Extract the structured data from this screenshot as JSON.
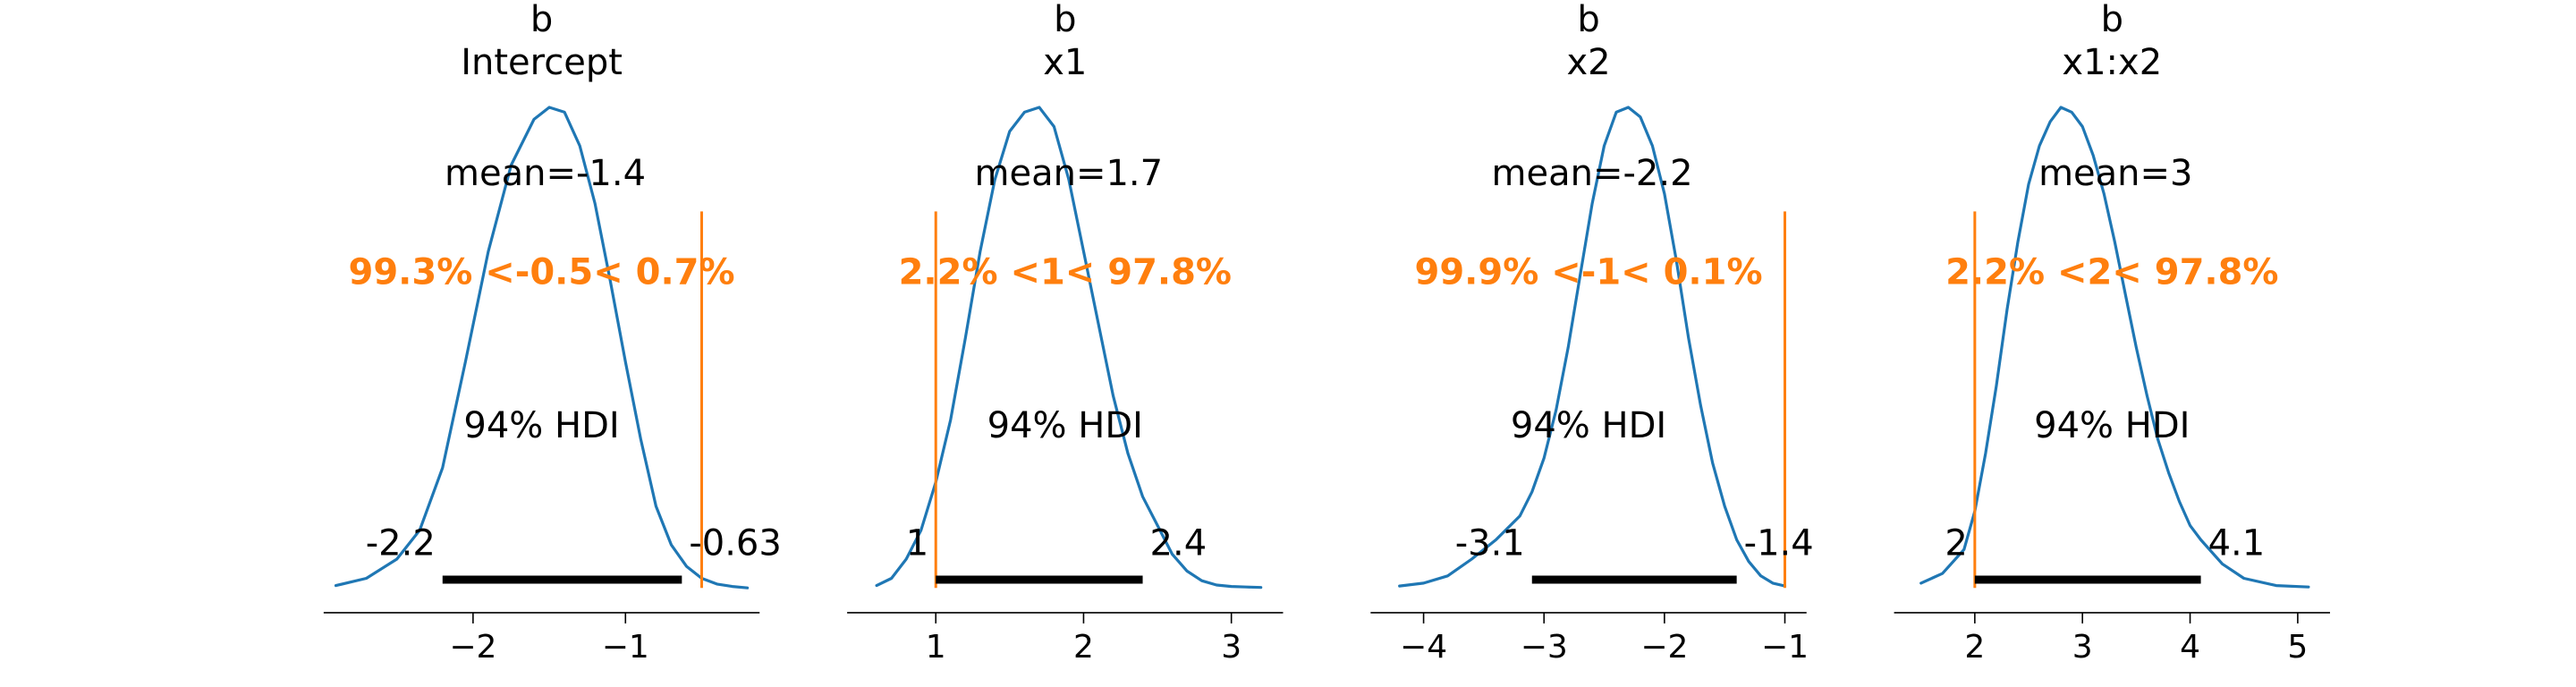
{
  "chart_data": [
    {
      "type": "line",
      "title_lines": [
        "b",
        "Intercept"
      ],
      "x_ticks": [
        -2,
        -1
      ],
      "x_tick_labels": [
        "−2",
        "−1"
      ],
      "xlim": [
        -2.98,
        -0.12
      ],
      "density": {
        "x": [
          -2.9,
          -2.7,
          -2.5,
          -2.35,
          -2.2,
          -2.05,
          -1.9,
          -1.75,
          -1.6,
          -1.5,
          -1.4,
          -1.3,
          -1.2,
          -1.1,
          -1.0,
          -0.9,
          -0.8,
          -0.7,
          -0.6,
          -0.5,
          -0.4,
          -0.3,
          -0.2
        ],
        "y": [
          0.005,
          0.02,
          0.06,
          0.12,
          0.25,
          0.47,
          0.7,
          0.88,
          0.975,
          1.0,
          0.99,
          0.92,
          0.8,
          0.64,
          0.47,
          0.31,
          0.17,
          0.09,
          0.045,
          0.02,
          0.008,
          0.003,
          0.0
        ]
      },
      "mean_label": "mean=-1.4",
      "ref_label": "99.3% <-0.5< 0.7%",
      "ref_value": -0.5,
      "hdi_label": "94% HDI",
      "hdi": [
        -2.2,
        -0.63
      ],
      "hdi_low_label": "-2.2",
      "hdi_high_label": "-0.63"
    },
    {
      "type": "line",
      "title_lines": [
        "b",
        "x1"
      ],
      "x_ticks": [
        1,
        2,
        3
      ],
      "x_tick_labels": [
        "1",
        "2",
        "3"
      ],
      "xlim": [
        0.4,
        3.35
      ],
      "density": {
        "x": [
          0.6,
          0.7,
          0.8,
          0.9,
          1.0,
          1.1,
          1.2,
          1.3,
          1.4,
          1.5,
          1.6,
          1.7,
          1.8,
          1.9,
          2.0,
          2.1,
          2.2,
          2.3,
          2.4,
          2.5,
          2.6,
          2.7,
          2.8,
          2.9,
          3.0,
          3.1,
          3.2
        ],
        "y": [
          0.005,
          0.02,
          0.06,
          0.12,
          0.22,
          0.35,
          0.52,
          0.7,
          0.85,
          0.95,
          0.99,
          1.0,
          0.96,
          0.85,
          0.7,
          0.55,
          0.4,
          0.28,
          0.19,
          0.13,
          0.07,
          0.035,
          0.015,
          0.006,
          0.003,
          0.002,
          0.001
        ]
      },
      "mean_label": "mean=1.7",
      "ref_label": "2.2% <1< 97.8%",
      "ref_value": 1,
      "hdi_label": "94% HDI",
      "hdi": [
        1.0,
        2.4
      ],
      "hdi_low_label": "1",
      "hdi_high_label": "2.4"
    },
    {
      "type": "line",
      "title_lines": [
        "b",
        "x2"
      ],
      "x_ticks": [
        -4,
        -3,
        -2,
        -1
      ],
      "x_tick_labels": [
        "−4",
        "−3",
        "−2",
        "−1"
      ],
      "xlim": [
        -4.44,
        -0.82
      ],
      "density": {
        "x": [
          -4.2,
          -4.0,
          -3.8,
          -3.6,
          -3.4,
          -3.2,
          -3.1,
          -3.0,
          -2.9,
          -2.8,
          -2.7,
          -2.6,
          -2.5,
          -2.4,
          -2.3,
          -2.2,
          -2.1,
          -2.0,
          -1.9,
          -1.8,
          -1.7,
          -1.6,
          -1.5,
          -1.4,
          -1.3,
          -1.2,
          -1.1,
          -1.0
        ],
        "y": [
          0.004,
          0.01,
          0.025,
          0.06,
          0.1,
          0.15,
          0.2,
          0.27,
          0.37,
          0.5,
          0.65,
          0.8,
          0.92,
          0.99,
          1.0,
          0.98,
          0.92,
          0.82,
          0.68,
          0.52,
          0.38,
          0.26,
          0.17,
          0.1,
          0.055,
          0.025,
          0.01,
          0.004
        ]
      },
      "mean_label": "mean=-2.2",
      "ref_label": "99.9% <-1< 0.1%",
      "ref_value": -1,
      "hdi_label": "94% HDI",
      "hdi": [
        -3.1,
        -1.4
      ],
      "hdi_low_label": "-3.1",
      "hdi_high_label": "-1.4"
    },
    {
      "type": "line",
      "title_lines": [
        "b",
        "x1:x2"
      ],
      "x_ticks": [
        2,
        3,
        4,
        5
      ],
      "x_tick_labels": [
        "2",
        "3",
        "4",
        "5"
      ],
      "xlim": [
        1.25,
        5.3
      ],
      "density": {
        "x": [
          1.5,
          1.7,
          1.9,
          2.0,
          2.1,
          2.2,
          2.3,
          2.4,
          2.5,
          2.6,
          2.7,
          2.8,
          2.9,
          3.0,
          3.1,
          3.2,
          3.3,
          3.4,
          3.5,
          3.6,
          3.7,
          3.8,
          3.9,
          4.0,
          4.1,
          4.3,
          4.5,
          4.8,
          5.1
        ],
        "y": [
          0.01,
          0.03,
          0.08,
          0.16,
          0.28,
          0.42,
          0.58,
          0.72,
          0.84,
          0.92,
          0.97,
          1.0,
          0.99,
          0.96,
          0.9,
          0.82,
          0.72,
          0.61,
          0.5,
          0.4,
          0.31,
          0.24,
          0.18,
          0.13,
          0.1,
          0.05,
          0.02,
          0.005,
          0.002
        ]
      },
      "mean_label": "mean=3",
      "ref_label": "2.2% <2< 97.8%",
      "ref_value": 2,
      "hdi_label": "94% HDI",
      "hdi": [
        2.0,
        4.1
      ],
      "hdi_low_label": "2",
      "hdi_high_label": "4.1"
    }
  ],
  "colors": {
    "density_line": "#1f77b4",
    "reference_line": "#ff7f0e",
    "reference_text": "#ff7f0e",
    "hdi_bar": "#000000",
    "text": "#000000"
  }
}
